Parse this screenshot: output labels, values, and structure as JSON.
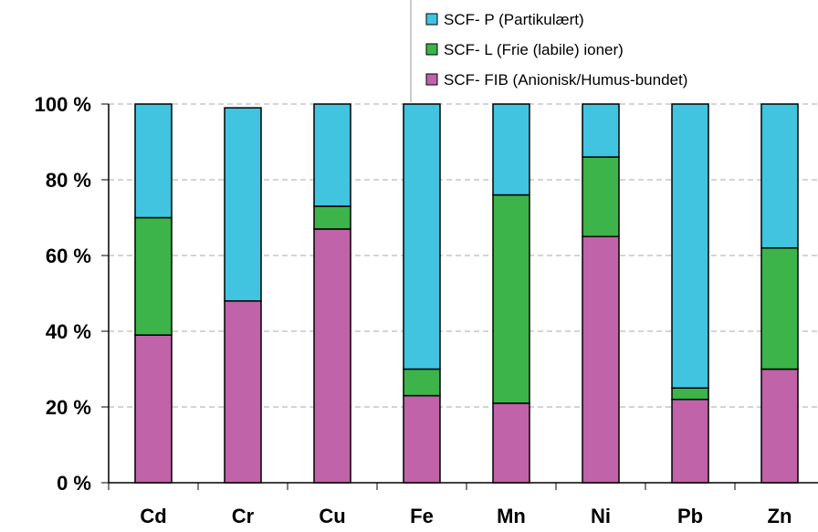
{
  "chart_data": {
    "type": "bar",
    "stacked": true,
    "categories": [
      "Cd",
      "Cr",
      "Cu",
      "Fe",
      "Mn",
      "Ni",
      "Pb",
      "Zn"
    ],
    "series": [
      {
        "name": "SCF- FIB (Anionisk/Humus-bundet)",
        "color": "#c063a8",
        "values": [
          39,
          48,
          67,
          23,
          21,
          65,
          22,
          30
        ]
      },
      {
        "name": "SCF- L (Frie (labile) ioner)",
        "color": "#3cb44a",
        "values": [
          31,
          0,
          6,
          7,
          55,
          21,
          3,
          32
        ]
      },
      {
        "name": "SCF- P (Partikulært)",
        "color": "#40c4e0",
        "values": [
          30,
          51,
          27,
          70,
          24,
          14,
          75,
          38
        ]
      }
    ],
    "legend_order": [
      2,
      1,
      0
    ],
    "y_ticks": [
      "0 %",
      "20 %",
      "40 %",
      "60 %",
      "80 %",
      "100 %"
    ],
    "ylim": [
      0,
      100
    ],
    "grid": true,
    "legend_position": "top-right"
  }
}
